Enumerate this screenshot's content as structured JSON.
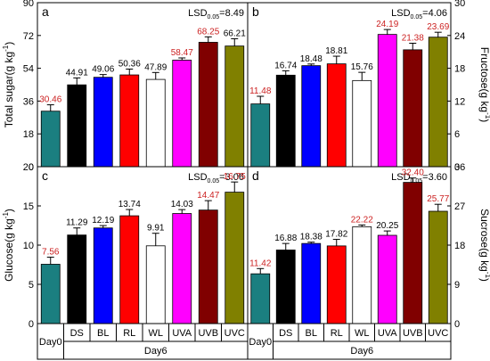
{
  "chart_data": [
    {
      "panel": "a",
      "type": "bar",
      "ylabel": "Total sugar(g kg",
      "ylabel_sup": "-1",
      "ylabel_close": ")",
      "ylim": [
        0,
        90
      ],
      "yticks": [
        "0",
        "18",
        "36",
        "54",
        "72",
        "90"
      ],
      "lsd_prefix": "LSD",
      "lsd_sub": "0.05",
      "lsd_value": "=8.49",
      "categories": [
        "Day0",
        "DS",
        "BL",
        "RL",
        "WL",
        "UVA",
        "UVB",
        "UVC"
      ],
      "values": [
        30.46,
        44.91,
        49.06,
        50.36,
        47.89,
        58.47,
        68.25,
        66.21
      ],
      "errors": [
        3.5,
        3.8,
        1.5,
        3.2,
        3.8,
        1.2,
        3.0,
        4.0
      ],
      "labels": [
        "30.46",
        "44.91",
        "49.06",
        "50.36",
        "47.89",
        "58.47",
        "68.25",
        "66.21"
      ]
    },
    {
      "panel": "b",
      "type": "bar",
      "ylabel": "Fructose(g kg",
      "ylabel_sup": "-1",
      "ylabel_close": ")",
      "ylim": [
        0,
        30
      ],
      "yticks": [
        "0",
        "6",
        "12",
        "18",
        "24",
        "30"
      ],
      "lsd_prefix": "LSD",
      "lsd_sub": "0.05",
      "lsd_value": "=4.06",
      "categories": [
        "Day0",
        "DS",
        "BL",
        "RL",
        "WL",
        "UVA",
        "UVB",
        "UVC"
      ],
      "values": [
        11.48,
        16.74,
        18.48,
        18.81,
        15.76,
        24.19,
        21.38,
        23.69
      ],
      "errors": [
        1.4,
        0.8,
        0.3,
        1.4,
        1.5,
        0.9,
        1.2,
        0.9
      ],
      "labels": [
        "11.48",
        "16.74",
        "18.48",
        "18.81",
        "15.76",
        "24.19",
        "21.38",
        "23.69"
      ]
    },
    {
      "panel": "c",
      "type": "bar",
      "ylabel": "Glucose(g kg",
      "ylabel_sup": "-1",
      "ylabel_close": ")",
      "ylim": [
        0,
        20
      ],
      "yticks": [
        "0",
        "5",
        "10",
        "15",
        "20"
      ],
      "lsd_prefix": "LSD",
      "lsd_sub": "0.05",
      "lsd_value": "=3.06",
      "categories": [
        "Day0",
        "DS",
        "BL",
        "RL",
        "WL",
        "UVA",
        "UVB",
        "UVC"
      ],
      "values": [
        7.56,
        11.29,
        12.19,
        13.74,
        9.91,
        14.03,
        14.47,
        16.75
      ],
      "errors": [
        0.9,
        0.9,
        0.3,
        0.8,
        1.6,
        0.5,
        1.2,
        1.3
      ],
      "labels": [
        "7.56",
        "11.29",
        "12.19",
        "13.74",
        "9.91",
        "14.03",
        "14.47",
        "16.75"
      ]
    },
    {
      "panel": "d",
      "type": "bar",
      "ylabel": "Sucrose(g kg",
      "ylabel_sup": "-1",
      "ylabel_close": ")",
      "ylim": [
        0,
        36
      ],
      "yticks": [
        "0",
        "9",
        "18",
        "27",
        "36"
      ],
      "lsd_prefix": "LSD",
      "lsd_sub": "0.05",
      "lsd_value": "=3.60",
      "categories": [
        "Day0",
        "DS",
        "BL",
        "RL",
        "WL",
        "UVA",
        "UVB",
        "UVC"
      ],
      "values": [
        11.42,
        16.88,
        18.38,
        17.82,
        22.22,
        20.25,
        32.4,
        25.77
      ],
      "errors": [
        1.2,
        1.5,
        0.3,
        1.5,
        0.4,
        1.0,
        1.0,
        1.6
      ],
      "labels": [
        "11.42",
        "16.88",
        "18.38",
        "17.82",
        "22.22",
        "20.25",
        "32.40",
        "25.77"
      ]
    }
  ],
  "group_labels": {
    "day0": "Day0",
    "day6": "Day6"
  },
  "colors": {
    "bars": [
      "#1b7f80",
      "#000000",
      "#0000ff",
      "#ff0000",
      "#ffffff",
      "#ff00ff",
      "#800000",
      "#808000"
    ],
    "value_label_emphasis": "#cc2222",
    "value_label_normal": "#000000"
  },
  "emphasized_labels": [
    [
      true,
      false,
      false,
      false,
      false,
      true,
      true,
      false
    ],
    [
      true,
      false,
      false,
      false,
      false,
      true,
      true,
      true
    ],
    [
      true,
      false,
      false,
      false,
      false,
      false,
      true,
      true
    ],
    [
      true,
      false,
      false,
      false,
      true,
      false,
      true,
      true
    ]
  ]
}
